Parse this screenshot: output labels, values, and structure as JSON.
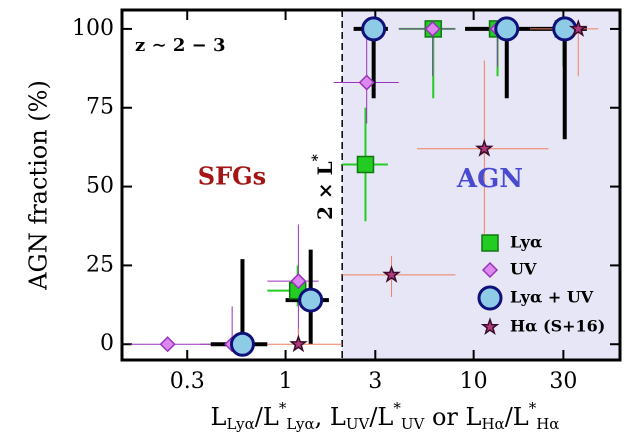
{
  "chart_data": {
    "type": "scatter",
    "ylabel": "AGN fraction (%)",
    "xlabel": [
      "L",
      "Lyα",
      "/L",
      "*",
      "Lyα",
      ", L",
      "UV",
      "/L",
      "*",
      "UV",
      " or L",
      "Hα",
      "/L",
      "*",
      "Hα"
    ],
    "annotations": {
      "redshift": "z ∼ 2 − 3",
      "left_region": "SFGs",
      "right_region": "AGN",
      "divider": [
        "2 × L",
        "*"
      ]
    },
    "divider_x": 2,
    "xscale": "log",
    "xlim": [
      0.135,
      60
    ],
    "xticks": [
      0.3,
      1,
      3,
      10,
      30
    ],
    "ylim": [
      -5,
      106
    ],
    "yticks": [
      0,
      25,
      50,
      75,
      100
    ],
    "series": [
      {
        "name": "Lyα",
        "color": "#22cc22",
        "edge": "#117711",
        "errcolor": "#22cc22",
        "marker": "square",
        "x": [
          1.16,
          2.66,
          6.1,
          13.4,
          30
        ],
        "values": [
          17,
          57,
          100,
          100,
          100
        ],
        "x_lo": [
          0.8,
          2.0,
          4,
          9,
          20
        ],
        "x_hi": [
          1.5,
          3.5,
          8,
          18,
          40
        ],
        "y_lo": [
          12,
          39,
          78,
          85,
          88
        ],
        "y_hi": [
          25,
          75,
          100,
          100,
          100
        ]
      },
      {
        "name": "UV",
        "color": "#dd88ee",
        "edge": "#9933bb",
        "errcolor": "#9933bb",
        "marker": "diamond",
        "x": [
          0.236,
          0.52,
          1.17,
          2.7,
          6.05,
          13.4,
          30
        ],
        "values": [
          0,
          0,
          20,
          83,
          100,
          100,
          100
        ],
        "x_lo": [
          0.15,
          0.35,
          0.8,
          1.8,
          4,
          9,
          18
        ],
        "x_hi": [
          0.4,
          0.8,
          1.5,
          4,
          8,
          18,
          40
        ],
        "y_lo": [
          0,
          0,
          0,
          70,
          85,
          88,
          88
        ],
        "y_hi": [
          0,
          12,
          38,
          97,
          100,
          100,
          100
        ]
      },
      {
        "name": "Lyα + UV",
        "color": "#8ecbe6",
        "edge": "#10107a",
        "errcolor": "#000000",
        "marker": "circle",
        "x": [
          0.59,
          1.36,
          2.94,
          15,
          30.5
        ],
        "values": [
          0,
          14,
          100,
          100,
          100
        ],
        "x_lo": [
          0.4,
          1.0,
          2.3,
          9,
          20
        ],
        "x_hi": [
          0.8,
          1.7,
          3.5,
          20,
          40
        ],
        "y_lo": [
          0,
          0,
          78,
          78,
          65
        ],
        "y_hi": [
          27,
          30,
          100,
          100,
          100
        ]
      },
      {
        "name": "Hα (S+16)",
        "color": "#b03a7a",
        "edge": "#3a0a2a",
        "errcolor": "#f08060",
        "marker": "star",
        "x": [
          1.17,
          3.66,
          11.4,
          36
        ],
        "values": [
          0,
          22,
          62,
          100
        ],
        "x_lo": [
          0.8,
          2,
          5,
          20
        ],
        "x_hi": [
          2,
          8,
          25,
          46
        ],
        "y_lo": [
          0,
          15,
          35,
          85
        ],
        "y_hi": [
          5,
          28,
          90,
          100
        ]
      }
    ]
  }
}
